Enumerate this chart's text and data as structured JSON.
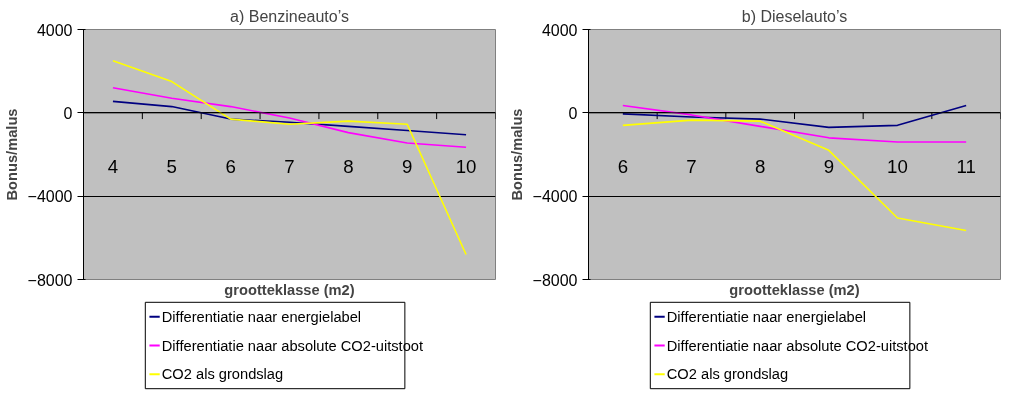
{
  "chart_data": [
    {
      "type": "line",
      "title": "a) Benzineauto’s",
      "xlabel": "grootteklasse (m2)",
      "ylabel": "Bonus/malus",
      "categories": [
        "4",
        "5",
        "6",
        "7",
        "8",
        "9",
        "10"
      ],
      "ylim": [
        -8000,
        4000
      ],
      "yticks": [
        -8000,
        -4000,
        0,
        4000
      ],
      "grid": "y",
      "legend": "bottom",
      "series": [
        {
          "name": "Differentiatie naar energielabel",
          "color": "#000080",
          "values": [
            550,
            300,
            -300,
            -450,
            -650,
            -850,
            -1050
          ]
        },
        {
          "name": "Differentiatie naar absolute CO2-uitstoot",
          "color": "#ff00ff",
          "values": [
            1200,
            700,
            300,
            -250,
            -950,
            -1450,
            -1650
          ]
        },
        {
          "name": "CO2 als grondslag",
          "color": "#ffff00",
          "values": [
            2500,
            1500,
            -300,
            -550,
            -400,
            -550,
            -6800
          ]
        }
      ]
    },
    {
      "type": "line",
      "title": "b) Dieselauto’s",
      "xlabel": "grootteklasse (m2)",
      "ylabel": "Bonus/malus",
      "categories": [
        "6",
        "7",
        "8",
        "9",
        "10",
        "11"
      ],
      "ylim": [
        -8000,
        4000
      ],
      "yticks": [
        -8000,
        -4000,
        0,
        4000
      ],
      "grid": "y",
      "legend": "bottom",
      "series": [
        {
          "name": "Differentiatie naar energielabel",
          "color": "#000080",
          "values": [
            -50,
            -200,
            -300,
            -700,
            -600,
            350
          ]
        },
        {
          "name": "Differentiatie naar absolute  CO2-uitstoot",
          "color": "#ff00ff",
          "values": [
            350,
            -100,
            -650,
            -1200,
            -1400,
            -1400
          ]
        },
        {
          "name": "CO2 als grondslag",
          "color": "#ffff00",
          "values": [
            -600,
            -350,
            -400,
            -1800,
            -5050,
            -5650
          ]
        }
      ]
    }
  ]
}
